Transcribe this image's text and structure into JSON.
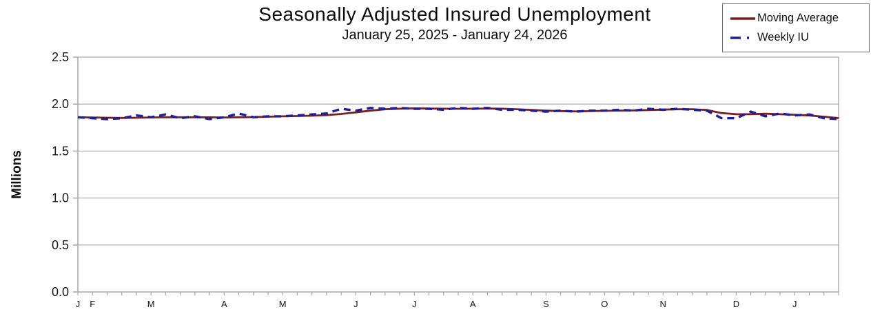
{
  "chart_data": {
    "type": "line",
    "title": "Seasonally Adjusted Insured Unemployment",
    "subtitle": "January 25, 2025 - January 24, 2026",
    "ylabel": "Millions",
    "ylim": [
      0,
      2.5
    ],
    "y_tick_step": 0.5,
    "y_tick_labels": [
      "0.0",
      "0.5",
      "1.0",
      "1.5",
      "2.0",
      "2.5"
    ],
    "grid": "horizontal",
    "legend_position": "top-right",
    "x_unit": "week",
    "x_week_range": [
      0,
      52
    ],
    "month_tick_labels": [
      {
        "label": "J",
        "week": 0
      },
      {
        "label": "F",
        "week": 1
      },
      {
        "label": "M",
        "week": 5
      },
      {
        "label": "A",
        "week": 10
      },
      {
        "label": "M",
        "week": 14
      },
      {
        "label": "J",
        "week": 19
      },
      {
        "label": "J",
        "week": 23
      },
      {
        "label": "A",
        "week": 27
      },
      {
        "label": "S",
        "week": 32
      },
      {
        "label": "O",
        "week": 36
      },
      {
        "label": "N",
        "week": 40
      },
      {
        "label": "D",
        "week": 45
      },
      {
        "label": "J",
        "week": 49
      }
    ],
    "series": [
      {
        "name": "Moving Average",
        "color": "#7a1f1f",
        "line_style": "solid",
        "values": [
          1.86,
          1.858,
          1.855,
          1.853,
          1.855,
          1.858,
          1.86,
          1.86,
          1.86,
          1.859,
          1.858,
          1.86,
          1.862,
          1.866,
          1.87,
          1.873,
          1.877,
          1.883,
          1.895,
          1.912,
          1.93,
          1.945,
          1.951,
          1.955,
          1.953,
          1.951,
          1.95,
          1.951,
          1.953,
          1.951,
          1.946,
          1.938,
          1.93,
          1.926,
          1.922,
          1.925,
          1.928,
          1.931,
          1.933,
          1.937,
          1.941,
          1.945,
          1.945,
          1.938,
          1.905,
          1.892,
          1.893,
          1.897,
          1.892,
          1.886,
          1.879,
          1.866,
          1.851
        ]
      },
      {
        "name": "Weekly IU",
        "color": "#1e1e9c",
        "line_style": "dashed",
        "values": [
          1.86,
          1.85,
          1.84,
          1.85,
          1.88,
          1.86,
          1.89,
          1.85,
          1.87,
          1.84,
          1.86,
          1.9,
          1.86,
          1.87,
          1.87,
          1.88,
          1.89,
          1.9,
          1.95,
          1.93,
          1.96,
          1.95,
          1.96,
          1.95,
          1.95,
          1.94,
          1.96,
          1.95,
          1.96,
          1.94,
          1.94,
          1.93,
          1.92,
          1.93,
          1.92,
          1.93,
          1.93,
          1.94,
          1.93,
          1.95,
          1.94,
          1.95,
          1.94,
          1.93,
          1.85,
          1.85,
          1.92,
          1.87,
          1.9,
          1.88,
          1.89,
          1.85,
          1.84
        ]
      }
    ],
    "colors": {
      "grid": "#b5b5b5",
      "axis": "#a8a8a8",
      "tick_text": "#151515"
    }
  }
}
